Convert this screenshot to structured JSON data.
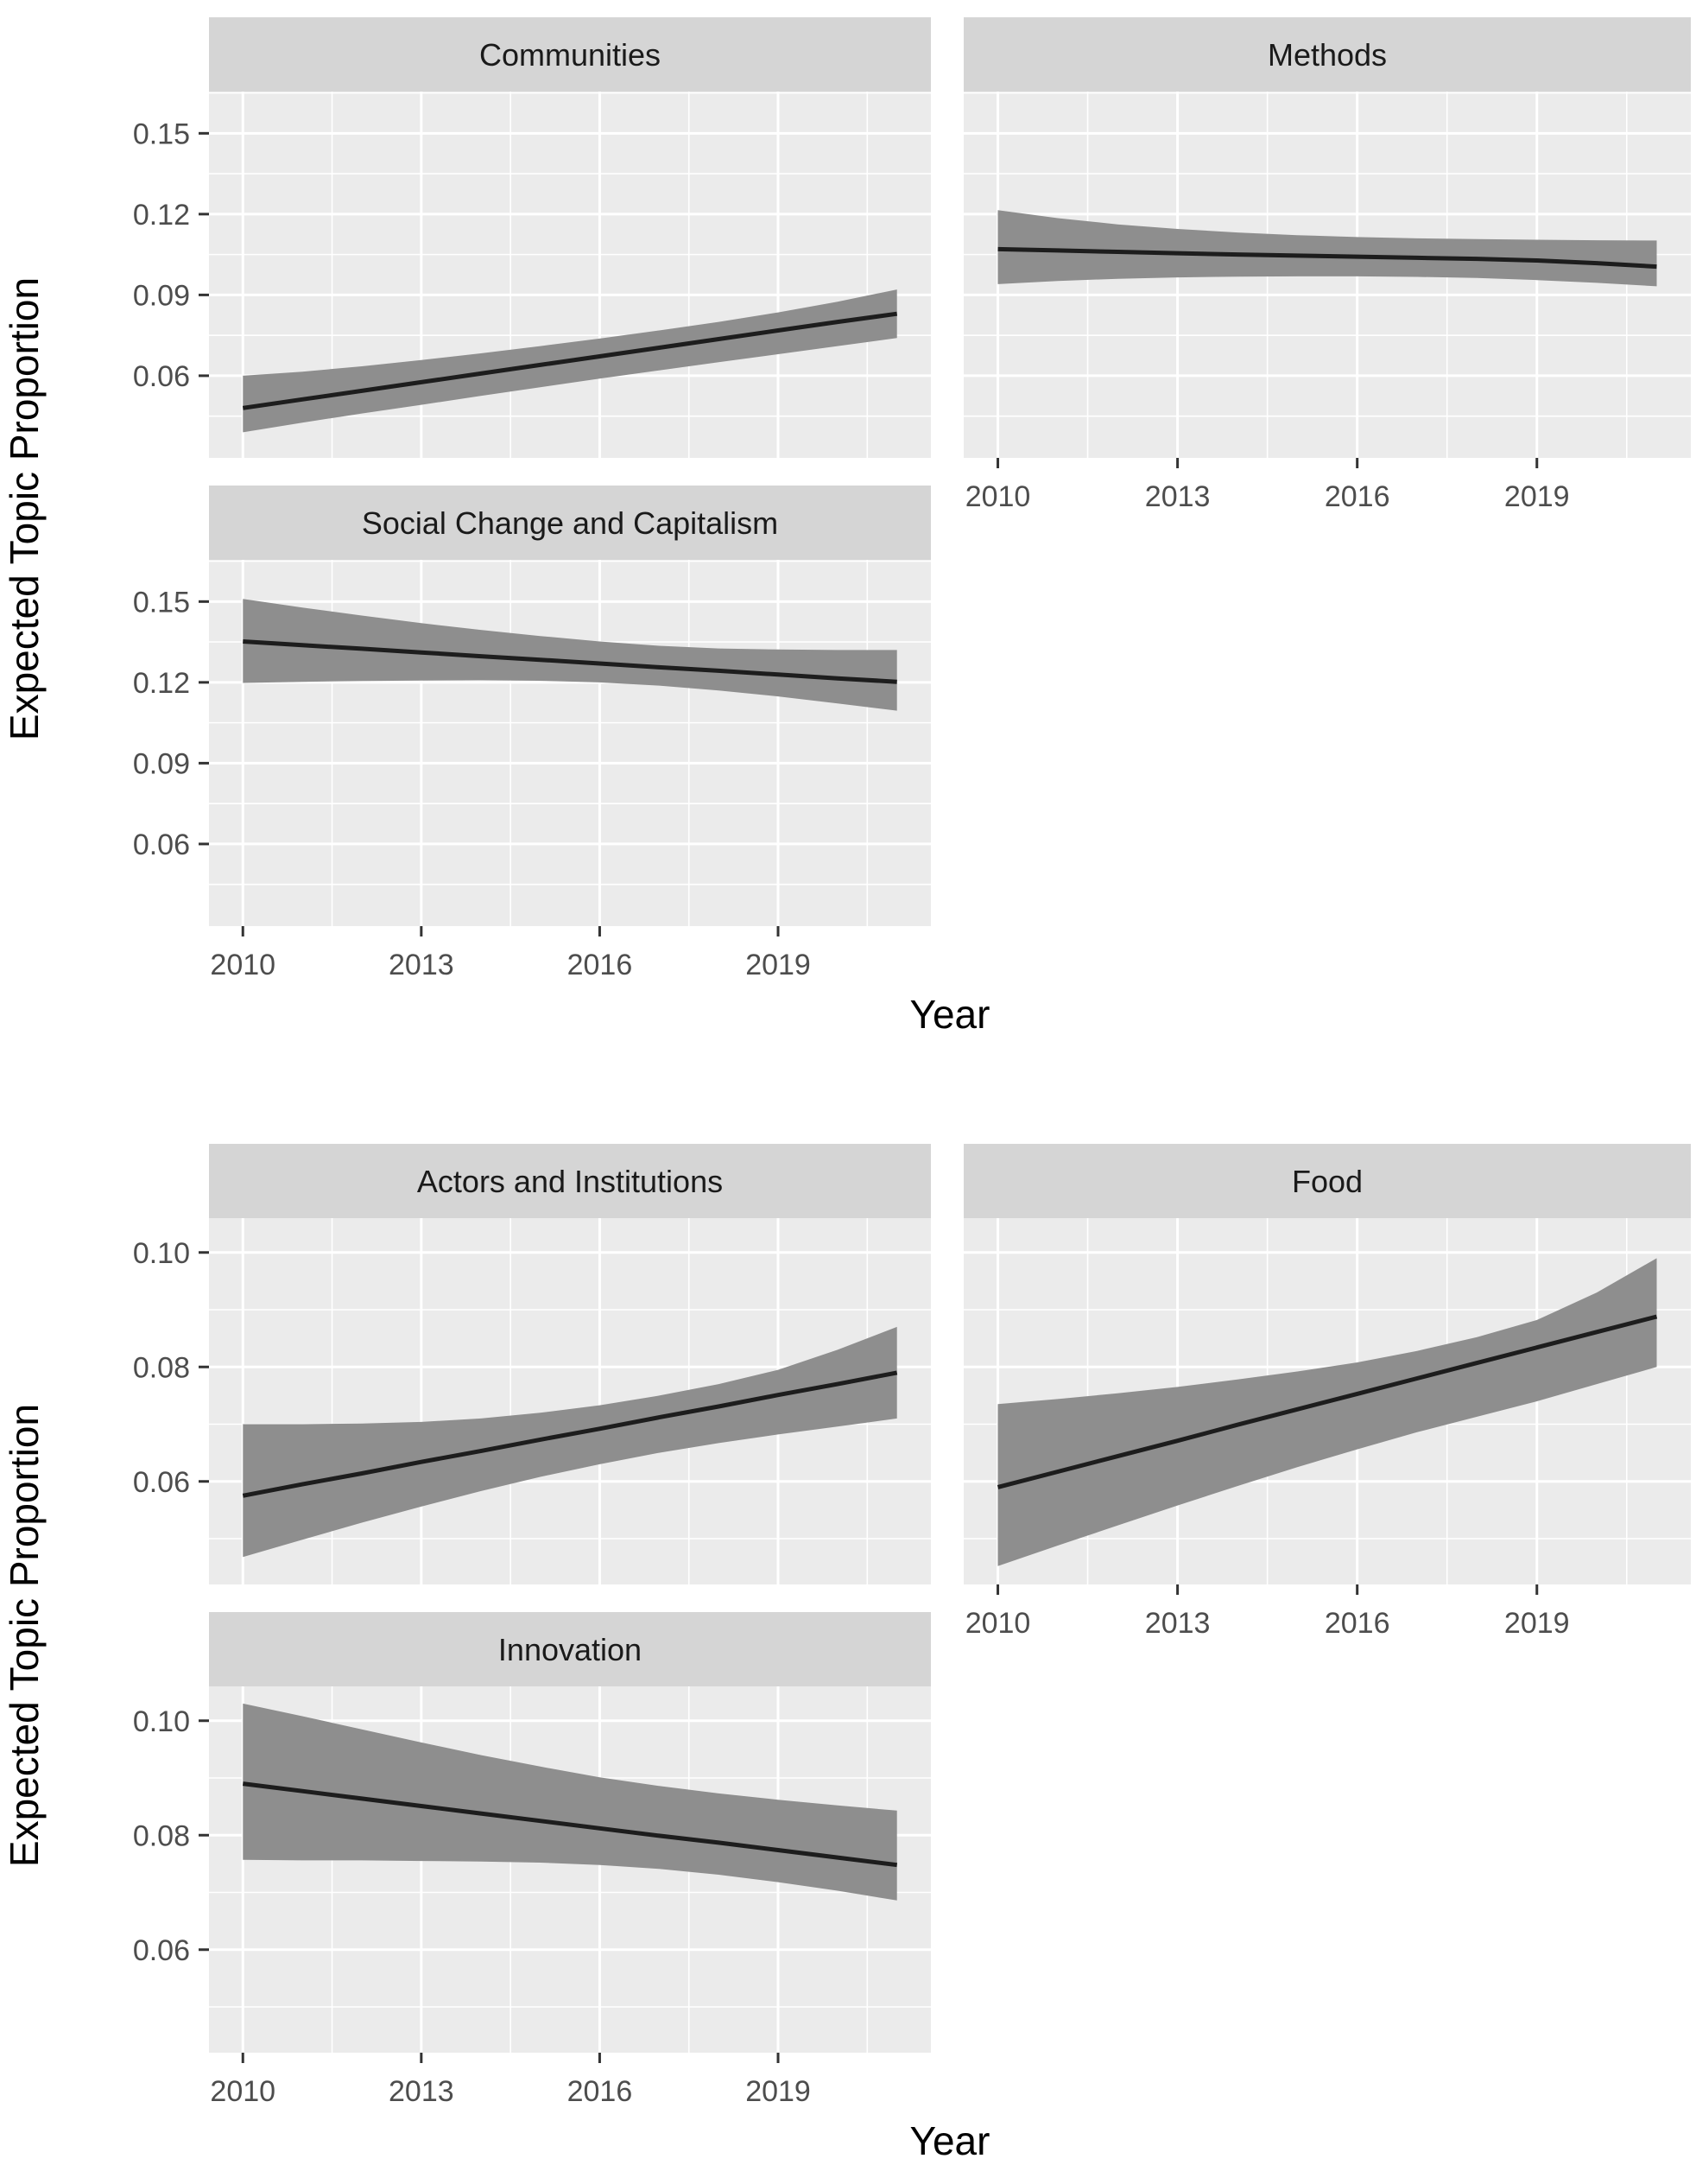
{
  "colors": {
    "background": "#ffffff",
    "panel_bg": "#ebebeb",
    "strip_bg": "#d5d5d5",
    "grid": "#ffffff",
    "ribbon": "#8e8e8e",
    "line": "#1d1d1d",
    "tick_mark": "#333333",
    "tick_label": "#4d4d4d",
    "strip_text": "#1a1a1a",
    "axis_title": "#000000"
  },
  "chart_data": [
    {
      "type": "line",
      "subtype": "faceted-line-with-confidence-ribbon",
      "xlabel": "Year",
      "ylabel": "Expected Topic Proportion",
      "x": [
        2010,
        2011,
        2012,
        2013,
        2014,
        2015,
        2016,
        2017,
        2018,
        2019,
        2020,
        2021
      ],
      "xlim": [
        2009.43,
        2021.57
      ],
      "x_ticks": [
        2010,
        2013,
        2016,
        2019
      ],
      "x_minor": [
        2011.5,
        2014.5,
        2017.5,
        2020.5
      ],
      "ylim": [
        0.0295,
        0.1655
      ],
      "y_ticks": [
        0.06,
        0.09,
        0.12,
        0.15
      ],
      "y_minor": [
        0.045,
        0.075,
        0.105,
        0.135,
        0.165
      ],
      "grid": true,
      "legend": "none",
      "facets": [
        {
          "label": "Communities",
          "row": 0,
          "col": 0,
          "x_axis": false,
          "mean": [
            0.048,
            0.0512,
            0.0544,
            0.0576,
            0.0608,
            0.064,
            0.0672,
            0.0704,
            0.0736,
            0.0768,
            0.08,
            0.083
          ],
          "lower": [
            0.039,
            0.0426,
            0.046,
            0.0492,
            0.0525,
            0.0557,
            0.0589,
            0.062,
            0.065,
            0.068,
            0.071,
            0.074
          ],
          "upper": [
            0.06,
            0.0615,
            0.0635,
            0.0658,
            0.0683,
            0.071,
            0.0738,
            0.0768,
            0.08,
            0.0835,
            0.0875,
            0.092
          ]
        },
        {
          "label": "Methods",
          "row": 0,
          "col": 1,
          "x_axis": true,
          "mean": [
            0.107,
            0.1065,
            0.106,
            0.1055,
            0.105,
            0.1046,
            0.1042,
            0.1038,
            0.1034,
            0.1028,
            0.1018,
            0.1005
          ],
          "lower": [
            0.094,
            0.0952,
            0.096,
            0.0965,
            0.0968,
            0.0969,
            0.0969,
            0.0967,
            0.0963,
            0.0955,
            0.0945,
            0.0932
          ],
          "upper": [
            0.1215,
            0.1185,
            0.1162,
            0.1145,
            0.1132,
            0.1122,
            0.1115,
            0.111,
            0.1107,
            0.1105,
            0.1103,
            0.1102
          ]
        },
        {
          "label": "Social Change and Capitalism",
          "row": 1,
          "col": 0,
          "x_axis": true,
          "mean": [
            0.1352,
            0.1338,
            0.1325,
            0.1311,
            0.1297,
            0.1284,
            0.127,
            0.1256,
            0.1243,
            0.1229,
            0.1215,
            0.1202
          ],
          "lower": [
            0.1198,
            0.1202,
            0.1205,
            0.1207,
            0.1208,
            0.1206,
            0.12,
            0.1188,
            0.117,
            0.1148,
            0.1122,
            0.1095
          ],
          "upper": [
            0.151,
            0.1478,
            0.1448,
            0.142,
            0.1395,
            0.1372,
            0.1352,
            0.1336,
            0.1326,
            0.1322,
            0.132,
            0.132
          ]
        }
      ]
    },
    {
      "type": "line",
      "subtype": "faceted-line-with-confidence-ribbon",
      "xlabel": "Year",
      "ylabel": "Expected Topic Proportion",
      "x": [
        2010,
        2011,
        2012,
        2013,
        2014,
        2015,
        2016,
        2017,
        2018,
        2019,
        2020,
        2021
      ],
      "xlim": [
        2009.43,
        2021.57
      ],
      "x_ticks": [
        2010,
        2013,
        2016,
        2019
      ],
      "x_minor": [
        2011.5,
        2014.5,
        2017.5,
        2020.5
      ],
      "ylim": [
        0.042,
        0.106
      ],
      "y_ticks": [
        0.06,
        0.08,
        0.1
      ],
      "y_minor": [
        0.05,
        0.07,
        0.09
      ],
      "grid": true,
      "legend": "none",
      "facets": [
        {
          "label": "Actors and Institutions",
          "row": 0,
          "col": 0,
          "x_axis": false,
          "mean": [
            0.0575,
            0.0595,
            0.0614,
            0.0634,
            0.0653,
            0.0673,
            0.0692,
            0.0712,
            0.0731,
            0.0751,
            0.077,
            0.079
          ],
          "lower": [
            0.0468,
            0.0498,
            0.0528,
            0.0556,
            0.0583,
            0.0608,
            0.063,
            0.065,
            0.0667,
            0.0682,
            0.0696,
            0.071
          ],
          "upper": [
            0.07,
            0.07,
            0.0701,
            0.0704,
            0.071,
            0.072,
            0.0733,
            0.075,
            0.077,
            0.0795,
            0.083,
            0.087
          ]
        },
        {
          "label": "Food",
          "row": 0,
          "col": 1,
          "x_axis": true,
          "mean": [
            0.059,
            0.0617,
            0.0644,
            0.0671,
            0.0699,
            0.0726,
            0.0753,
            0.078,
            0.0807,
            0.0834,
            0.0861,
            0.0888
          ],
          "lower": [
            0.0452,
            0.0488,
            0.0523,
            0.0558,
            0.0592,
            0.0625,
            0.0656,
            0.0686,
            0.0713,
            0.074,
            0.077,
            0.08
          ],
          "upper": [
            0.0735,
            0.0744,
            0.0754,
            0.0765,
            0.0778,
            0.0792,
            0.0808,
            0.0828,
            0.0852,
            0.0882,
            0.093,
            0.099
          ]
        },
        {
          "label": "Innovation",
          "row": 1,
          "col": 0,
          "x_axis": true,
          "mean": [
            0.089,
            0.0877,
            0.0864,
            0.0851,
            0.0838,
            0.0825,
            0.0812,
            0.0799,
            0.0787,
            0.0774,
            0.0761,
            0.0748
          ],
          "lower": [
            0.0757,
            0.0756,
            0.0756,
            0.0755,
            0.0754,
            0.0752,
            0.0748,
            0.0741,
            0.0731,
            0.0718,
            0.0703,
            0.0686
          ],
          "upper": [
            0.103,
            0.1008,
            0.0985,
            0.0962,
            0.094,
            0.092,
            0.0901,
            0.0886,
            0.0873,
            0.0862,
            0.0852,
            0.0843
          ]
        }
      ]
    }
  ]
}
